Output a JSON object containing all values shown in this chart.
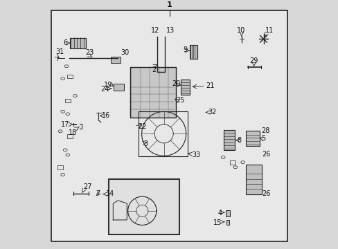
{
  "bg_color": "#d8d8d8",
  "border_color": "#000000",
  "diagram_bg": "#e8e8e8",
  "line_color": "#222222",
  "text_color": "#111111",
  "font_size": 7,
  "inset_bg": "#e0e0e0",
  "inset_border": "#333333"
}
